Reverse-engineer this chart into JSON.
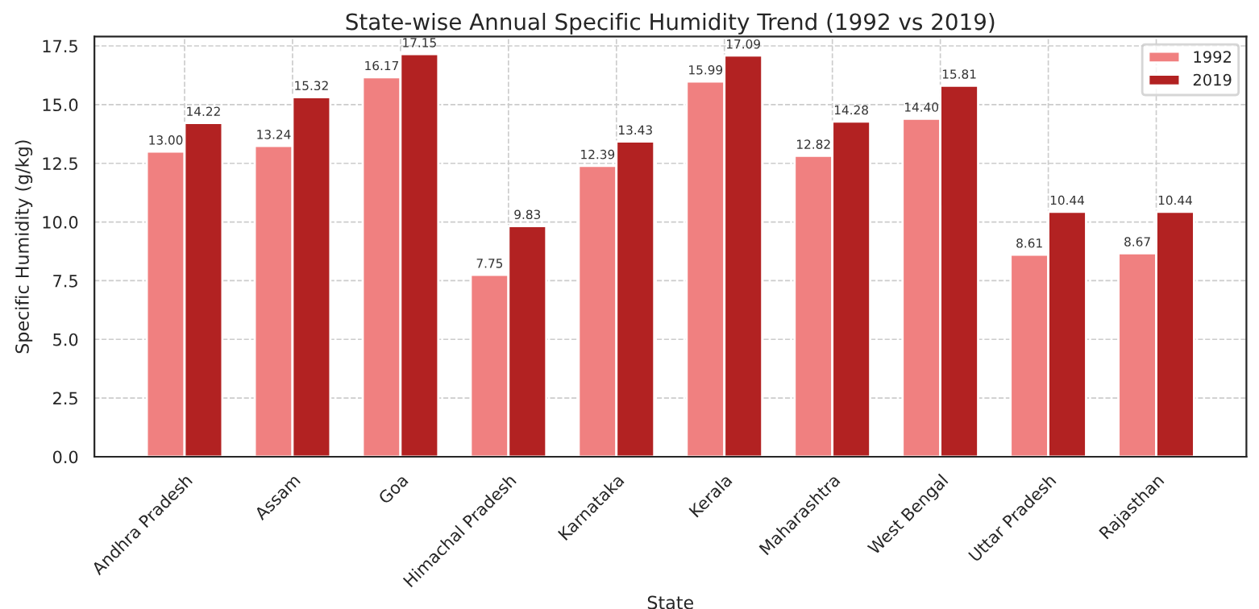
{
  "chart_data": {
    "type": "bar",
    "title": "State-wise Annual Specific Humidity Trend (1992 vs 2019)",
    "xlabel": "State",
    "ylabel": "Specific Humidity (g/kg)",
    "categories": [
      "Andhra Pradesh",
      "Assam",
      "Goa",
      "Himachal Pradesh",
      "Karnataka",
      "Kerala",
      "Maharashtra",
      "West Bengal",
      "Uttar Pradesh",
      "Rajasthan"
    ],
    "series": [
      {
        "name": "1992",
        "color": "#f08080",
        "values": [
          13.0,
          13.24,
          16.17,
          7.75,
          12.39,
          15.99,
          12.82,
          14.4,
          8.61,
          8.67
        ],
        "value_labels": [
          "13.00",
          "13.24",
          "16.17",
          "7.75",
          "12.39",
          "15.99",
          "12.82",
          "14.40",
          "8.61",
          "8.67"
        ]
      },
      {
        "name": "2019",
        "color": "#b22222",
        "values": [
          14.22,
          15.32,
          17.15,
          9.83,
          13.43,
          17.09,
          14.28,
          15.81,
          10.44,
          10.44
        ],
        "value_labels": [
          "14.22",
          "15.32",
          "17.15",
          "9.83",
          "13.43",
          "17.09",
          "14.28",
          "15.81",
          "10.44",
          "10.44"
        ]
      }
    ],
    "ylim": [
      0,
      17.9
    ],
    "yticks": [
      {
        "value": 0,
        "label": "0.0"
      },
      {
        "value": 2.5,
        "label": "2.5"
      },
      {
        "value": 5,
        "label": "5.0"
      },
      {
        "value": 7.5,
        "label": "7.5"
      },
      {
        "value": 10,
        "label": "10.0"
      },
      {
        "value": 12.5,
        "label": "12.5"
      },
      {
        "value": 15,
        "label": "15.0"
      },
      {
        "value": 17.5,
        "label": "17.5"
      }
    ],
    "grid": true,
    "legend": "top right"
  }
}
